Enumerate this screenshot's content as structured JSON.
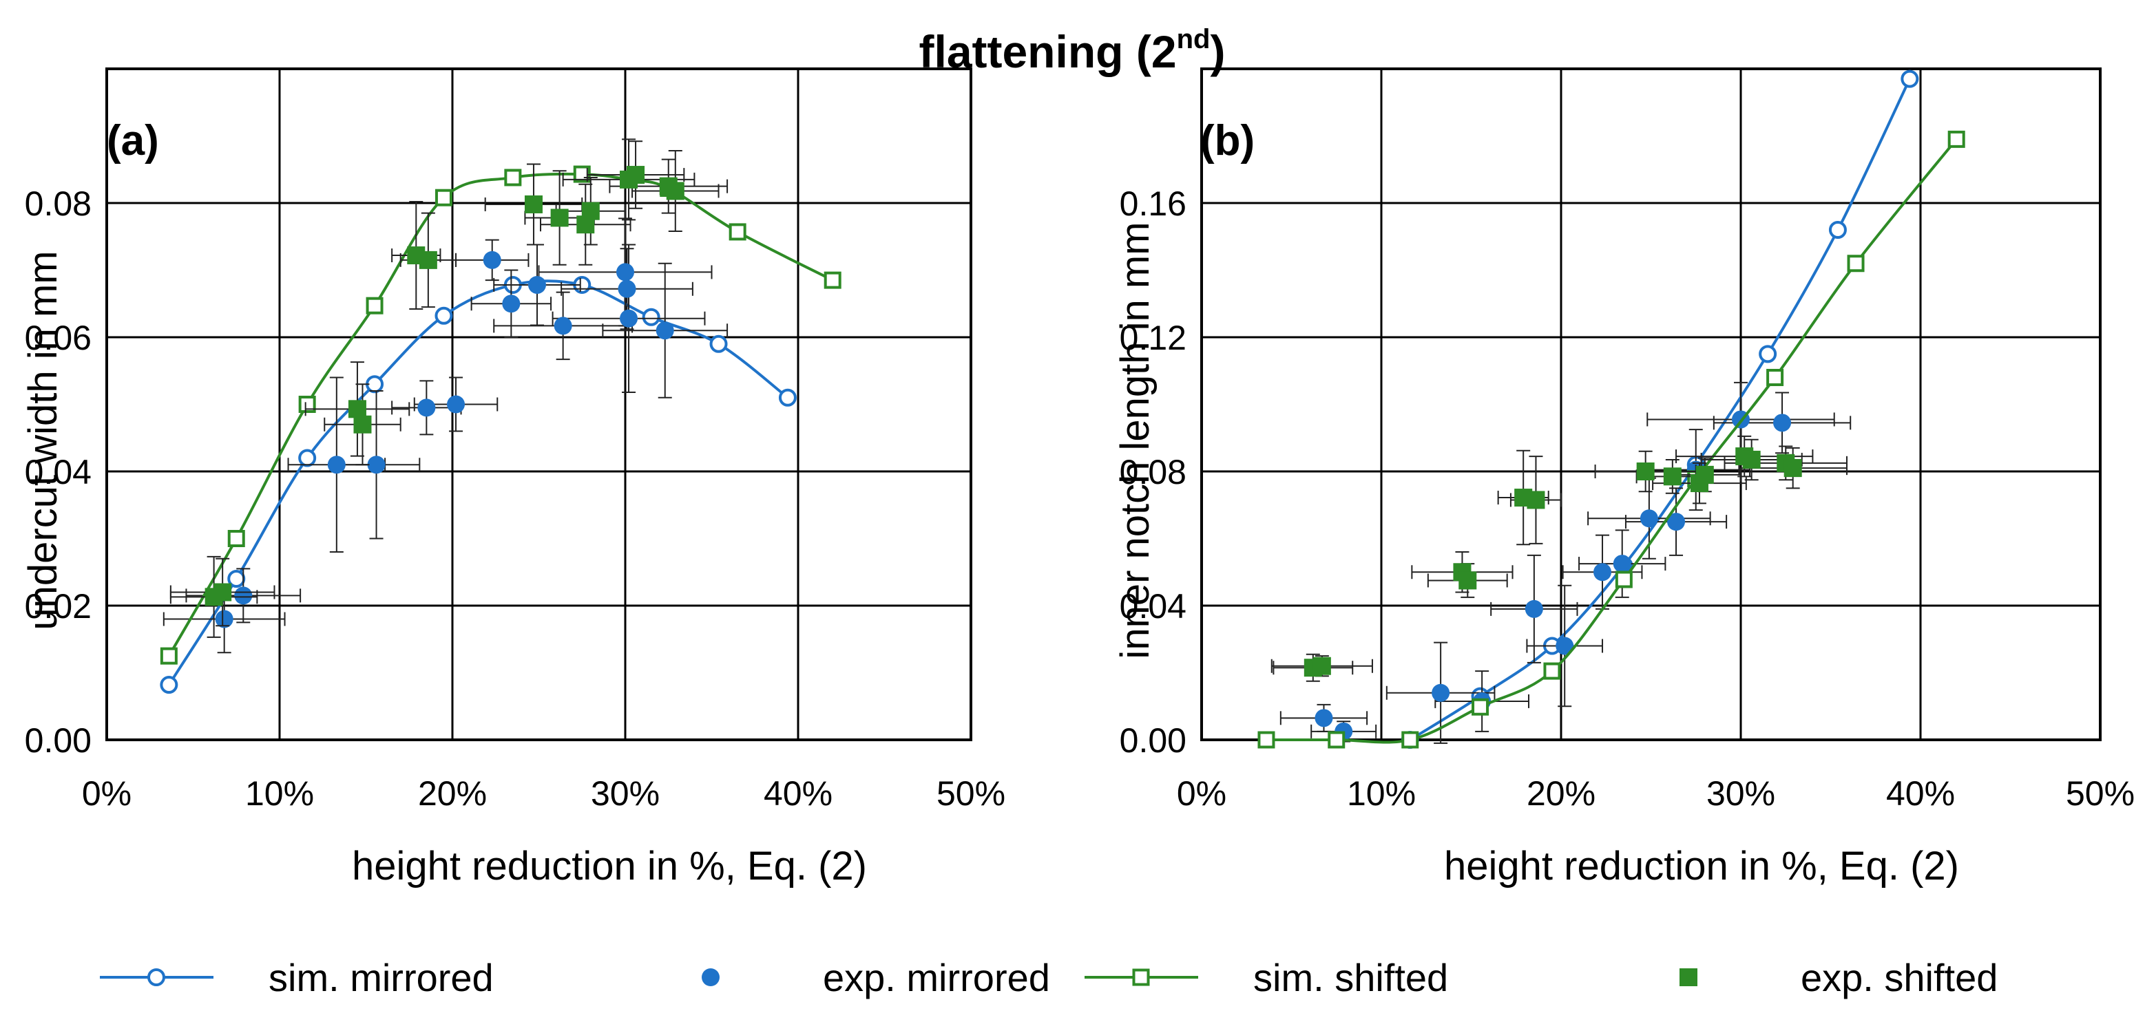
{
  "chart_data": [
    {
      "type": "scatter",
      "panel_label": "(a)",
      "title": "flattening",
      "title_superscript": "nd",
      "title_number": "2",
      "xlabel": "height reduction in %, Eq. (2)",
      "ylabel": "undercut width in mm",
      "xlim": [
        0,
        50
      ],
      "ylim": [
        0,
        0.1
      ],
      "grid": true,
      "x_ticks": [
        0,
        10,
        20,
        30,
        40,
        50
      ],
      "x_tick_labels": [
        "0%",
        "10%",
        "20%",
        "30%",
        "40%",
        "50%"
      ],
      "y_ticks": [
        0,
        0.02,
        0.04,
        0.06,
        0.08
      ],
      "y_tick_labels": [
        "0.00",
        "0.02",
        "0.04",
        "0.06",
        "0.08"
      ],
      "series": [
        {
          "name": "sim. mirrored",
          "style": "line-open-circle",
          "color": "#1f73c9",
          "x": [
            3.6,
            7.5,
            11.6,
            15.5,
            19.5,
            23.5,
            27.5,
            31.5,
            35.4,
            39.4
          ],
          "y": [
            0.0082,
            0.024,
            0.042,
            0.053,
            0.0632,
            0.0678,
            0.0678,
            0.063,
            0.059,
            0.051
          ]
        },
        {
          "name": "exp. mirrored",
          "style": "filled-circle",
          "color": "#1f73c9",
          "x": [
            6.8,
            7.9,
            13.3,
            15.6,
            18.5,
            20.2,
            22.3,
            23.4,
            24.9,
            26.4,
            30.0,
            30.1,
            30.2,
            32.3
          ],
          "y": [
            0.018,
            0.0215,
            0.041,
            0.041,
            0.0495,
            0.05,
            0.0715,
            0.065,
            0.0678,
            0.0617,
            0.0697,
            0.0672,
            0.0628,
            0.061
          ],
          "x_err": [
            3.5,
            3.3,
            2.8,
            2.5,
            2.0,
            2.4,
            2.1,
            2.3,
            2.5,
            4.0,
            5.0,
            3.8,
            4.4,
            3.6
          ],
          "y_err": [
            0.005,
            0.004,
            0.013,
            0.011,
            0.004,
            0.004,
            0.003,
            0.005,
            0.006,
            0.005,
            0.008,
            0.006,
            0.011,
            0.01
          ]
        },
        {
          "name": "sim. shifted",
          "style": "line-open-square",
          "color": "#2e8b26",
          "x": [
            3.6,
            7.5,
            11.6,
            15.5,
            19.5,
            23.5,
            27.5,
            30.2,
            32.5,
            36.5,
            42.0
          ],
          "y": [
            0.0125,
            0.03,
            0.05,
            0.0647,
            0.0808,
            0.0838,
            0.0843,
            0.0835,
            0.0822,
            0.0757,
            0.0685
          ],
          "curve": "smooth"
        },
        {
          "name": "exp. shifted",
          "style": "filled-square",
          "color": "#2e8b26",
          "x": [
            6.2,
            6.7,
            14.5,
            14.8,
            17.9,
            18.6,
            24.7,
            26.2,
            27.7,
            28.0,
            30.2,
            30.6,
            32.5,
            32.9
          ],
          "y": [
            0.0213,
            0.022,
            0.0493,
            0.047,
            0.0722,
            0.0715,
            0.0798,
            0.0778,
            0.0768,
            0.0788,
            0.0835,
            0.0842,
            0.0825,
            0.0818
          ],
          "x_err": [
            2.5,
            3.0,
            3.0,
            2.2,
            1.4,
            1.6,
            2.8,
            2.0,
            2.6,
            2.0,
            3.8,
            2.8,
            3.4,
            2.5
          ],
          "y_err": [
            0.006,
            0.005,
            0.007,
            0.006,
            0.008,
            0.007,
            0.006,
            0.007,
            0.006,
            0.005,
            0.006,
            0.005,
            0.004,
            0.006
          ]
        }
      ]
    },
    {
      "type": "scatter",
      "panel_label": "(b)",
      "xlabel": "height reduction in %, Eq. (2)",
      "ylabel": "inner notch length in mm",
      "xlim": [
        0,
        50
      ],
      "ylim": [
        0,
        0.2
      ],
      "grid": true,
      "x_ticks": [
        0,
        10,
        20,
        30,
        40,
        50
      ],
      "x_tick_labels": [
        "0%",
        "10%",
        "20%",
        "30%",
        "40%",
        "50%"
      ],
      "y_ticks": [
        0,
        0.04,
        0.08,
        0.12,
        0.16
      ],
      "y_tick_labels": [
        "0.00",
        "0.04",
        "0.08",
        "0.12",
        "0.16"
      ],
      "series": [
        {
          "name": "sim. mirrored",
          "style": "line-open-circle",
          "color": "#1f73c9",
          "x": [
            11.6,
            15.5,
            19.5,
            23.5,
            27.5,
            31.5,
            35.4,
            39.4
          ],
          "y": [
            0.0,
            0.013,
            0.028,
            0.052,
            0.082,
            0.115,
            0.152,
            0.197
          ]
        },
        {
          "name": "exp. mirrored",
          "style": "filled-circle",
          "color": "#1f73c9",
          "x": [
            6.8,
            7.9,
            13.3,
            15.6,
            18.5,
            20.2,
            22.3,
            23.4,
            24.9,
            26.4,
            27.5,
            30.0,
            32.3
          ],
          "y": [
            0.0065,
            0.0025,
            0.014,
            0.0115,
            0.039,
            0.028,
            0.05,
            0.0525,
            0.066,
            0.065,
            0.0805,
            0.0955,
            0.0945
          ],
          "x_err": [
            2.4,
            1.8,
            3.0,
            2.6,
            2.4,
            2.1,
            2.2,
            2.4,
            3.4,
            2.8,
            3.0,
            5.2,
            3.8
          ],
          "y_err": [
            0.004,
            0.003,
            0.015,
            0.009,
            0.016,
            0.018,
            0.011,
            0.01,
            0.012,
            0.01,
            0.012,
            0.011,
            0.009
          ]
        },
        {
          "name": "sim. shifted",
          "style": "line-open-square",
          "color": "#2e8b26",
          "x": [
            3.6,
            7.5,
            11.6,
            15.5,
            19.5,
            23.5,
            27.5,
            31.9,
            36.4,
            42.0
          ],
          "y": [
            0.0,
            0.0,
            0.0,
            0.0098,
            0.0205,
            0.0478,
            0.0778,
            0.108,
            0.142,
            0.179
          ]
        },
        {
          "name": "exp. shifted",
          "style": "filled-square",
          "color": "#2e8b26",
          "x": [
            6.2,
            6.7,
            14.5,
            14.8,
            17.9,
            18.6,
            24.7,
            26.2,
            27.7,
            28.0,
            30.2,
            30.6,
            32.5,
            32.9
          ],
          "y": [
            0.0215,
            0.022,
            0.05,
            0.0475,
            0.0722,
            0.0715,
            0.08,
            0.0785,
            0.0765,
            0.079,
            0.0845,
            0.0835,
            0.0825,
            0.081
          ],
          "x_err": [
            2.2,
            2.8,
            2.8,
            2.2,
            1.4,
            1.4,
            2.8,
            2.0,
            2.6,
            2.0,
            3.8,
            2.8,
            3.4,
            3.0
          ],
          "y_err": [
            0.004,
            0.003,
            0.006,
            0.005,
            0.014,
            0.013,
            0.006,
            0.005,
            0.006,
            0.005,
            0.006,
            0.006,
            0.005,
            0.006
          ]
        }
      ]
    }
  ],
  "legend": {
    "placement": "bottom",
    "items": [
      {
        "label": "sim. mirrored",
        "style": "line-open-circle",
        "color": "#1f73c9"
      },
      {
        "label": "exp. mirrored",
        "style": "filled-circle",
        "color": "#1f73c9"
      },
      {
        "label": "sim. shifted",
        "style": "line-open-square",
        "color": "#2e8b26"
      },
      {
        "label": "exp. shifted",
        "style": "filled-square",
        "color": "#2e8b26"
      }
    ]
  }
}
